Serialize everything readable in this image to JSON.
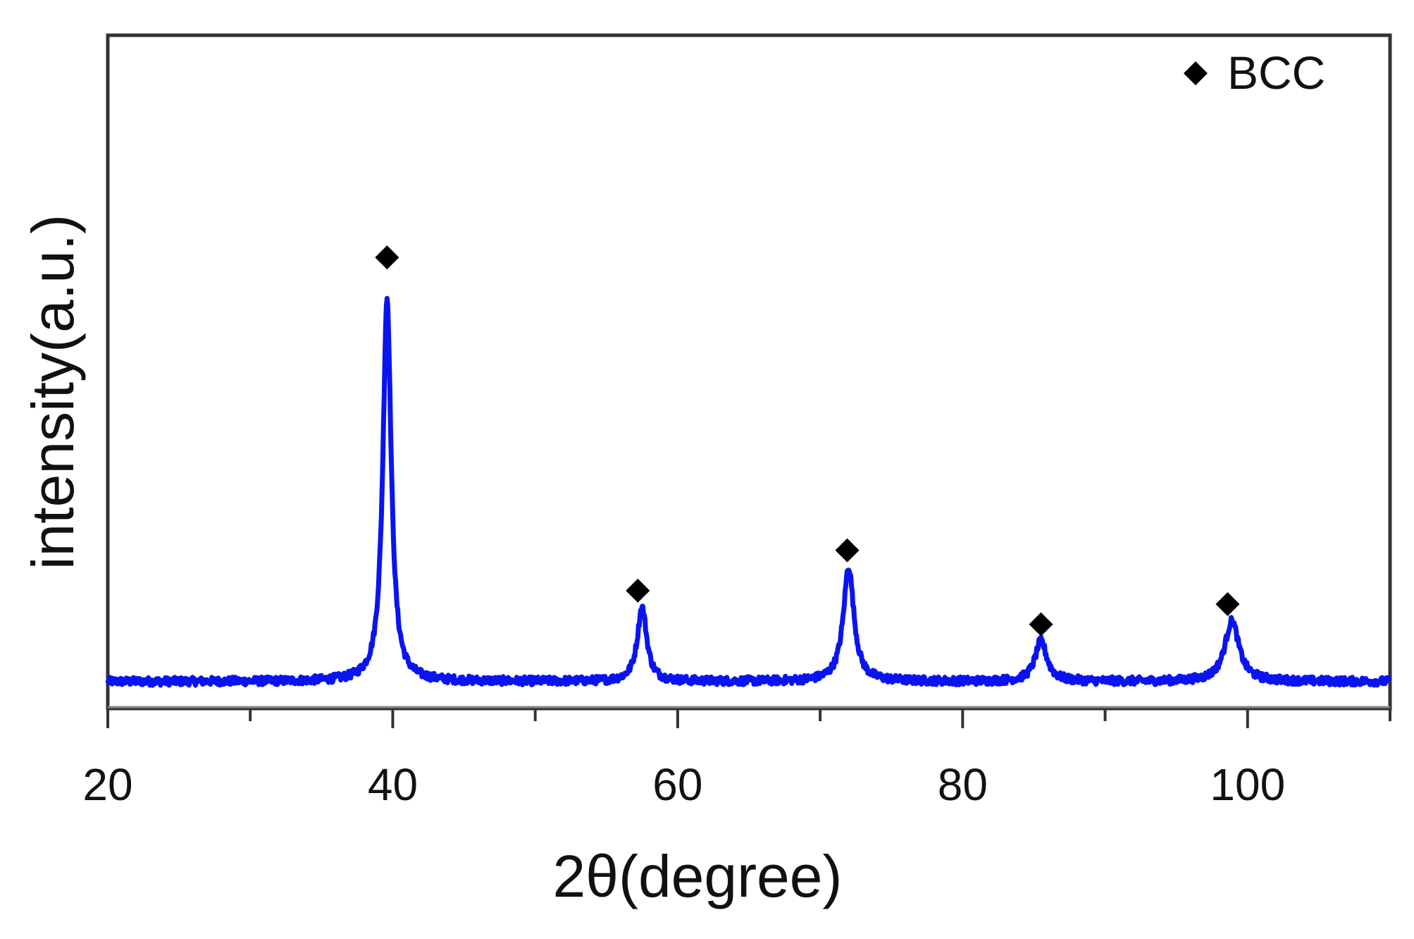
{
  "chart_data": {
    "type": "line",
    "title": "",
    "xlabel": "2θ(degree)",
    "ylabel": "intensity(a.u.)",
    "xlim": [
      20,
      110
    ],
    "ylim": [
      0,
      100
    ],
    "x_ticks_major": [
      20,
      40,
      60,
      80,
      100
    ],
    "x_ticks_minor": [
      30,
      50,
      70,
      90,
      110
    ],
    "y_ticks": [],
    "grid": false,
    "legend": {
      "position": "top-right",
      "entries": [
        {
          "marker": "diamond",
          "label": "BCC",
          "color": "#000000"
        }
      ]
    },
    "series": [
      {
        "color": "#0a14f0",
        "baseline": 4,
        "noise": 0.6,
        "peaks": [
          {
            "x": 39.6,
            "height": 57,
            "width": 0.35
          },
          {
            "x": 57.5,
            "height": 11,
            "width": 0.4
          },
          {
            "x": 72.0,
            "height": 17,
            "width": 0.45
          },
          {
            "x": 85.5,
            "height": 6,
            "width": 0.5
          },
          {
            "x": 98.9,
            "height": 9,
            "width": 0.6
          }
        ]
      }
    ],
    "annotations": [
      {
        "marker": "diamond",
        "label": "BCC",
        "x": 39.6,
        "y": 67
      },
      {
        "marker": "diamond",
        "label": "BCC",
        "x": 57.2,
        "y": 17.5
      },
      {
        "marker": "diamond",
        "label": "BCC",
        "x": 71.9,
        "y": 23.5
      },
      {
        "marker": "diamond",
        "label": "BCC",
        "x": 85.5,
        "y": 12.5
      },
      {
        "marker": "diamond",
        "label": "BCC",
        "x": 98.6,
        "y": 15.5
      }
    ]
  }
}
